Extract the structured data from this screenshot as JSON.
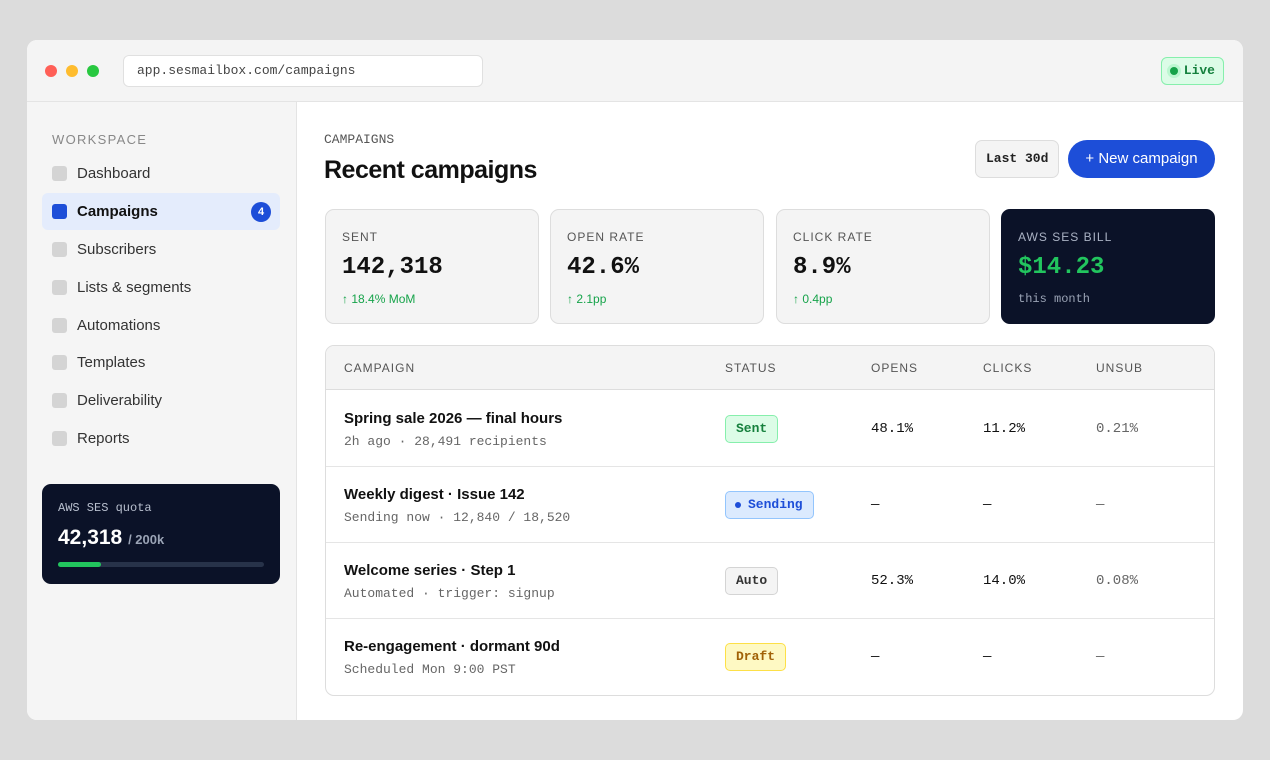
{
  "browser": {
    "url": "app.sesmailbox.com/campaigns",
    "live_label": "Live"
  },
  "sidebar": {
    "section_label": "WORKSPACE",
    "items": [
      {
        "label": "Dashboard"
      },
      {
        "label": "Campaigns",
        "badge": "4",
        "active": true
      },
      {
        "label": "Subscribers"
      },
      {
        "label": "Lists & segments"
      },
      {
        "label": "Automations"
      },
      {
        "label": "Templates"
      },
      {
        "label": "Deliverability"
      },
      {
        "label": "Reports"
      }
    ],
    "quota": {
      "title": "AWS SES quota",
      "value": "42,318",
      "max": "/ 200k",
      "fraction": 0.21
    }
  },
  "main": {
    "breadcrumb": "CAMPAIGNS",
    "title": "Recent campaigns",
    "range_label": "Last 30d",
    "new_label": "+ New campaign"
  },
  "stats": [
    {
      "label": "SENT",
      "value": "142,318",
      "delta": "↑ 18.4% MoM"
    },
    {
      "label": "OPEN RATE",
      "value": "42.6%",
      "delta": "↑ 2.1pp"
    },
    {
      "label": "CLICK RATE",
      "value": "8.9%",
      "delta": "↑ 0.4pp"
    },
    {
      "label": "AWS SES BILL",
      "value": "$14.23",
      "sub": "this month"
    }
  ],
  "table": {
    "headers": {
      "campaign": "CAMPAIGN",
      "status": "STATUS",
      "opens": "OPENS",
      "clicks": "CLICKS",
      "unsub": "UNSUB"
    },
    "rows": [
      {
        "name": "Spring sale 2026 — final hours",
        "sub": "2h ago · 28,491 recipients",
        "status": "Sent",
        "opens": "48.1%",
        "clicks": "11.2%",
        "unsub": "0.21%"
      },
      {
        "name": "Weekly digest · Issue 142",
        "sub": "Sending now · 12,840 / 18,520",
        "status": "Sending",
        "opens": "—",
        "clicks": "—",
        "unsub": "—"
      },
      {
        "name": "Welcome series · Step 1",
        "sub": "Automated · trigger: signup",
        "status": "Auto",
        "opens": "52.3%",
        "clicks": "14.0%",
        "unsub": "0.08%"
      },
      {
        "name": "Re-engagement · dormant 90d",
        "sub": "Scheduled Mon 9:00 PST",
        "status": "Draft",
        "opens": "—",
        "clicks": "—",
        "unsub": "—"
      }
    ]
  }
}
